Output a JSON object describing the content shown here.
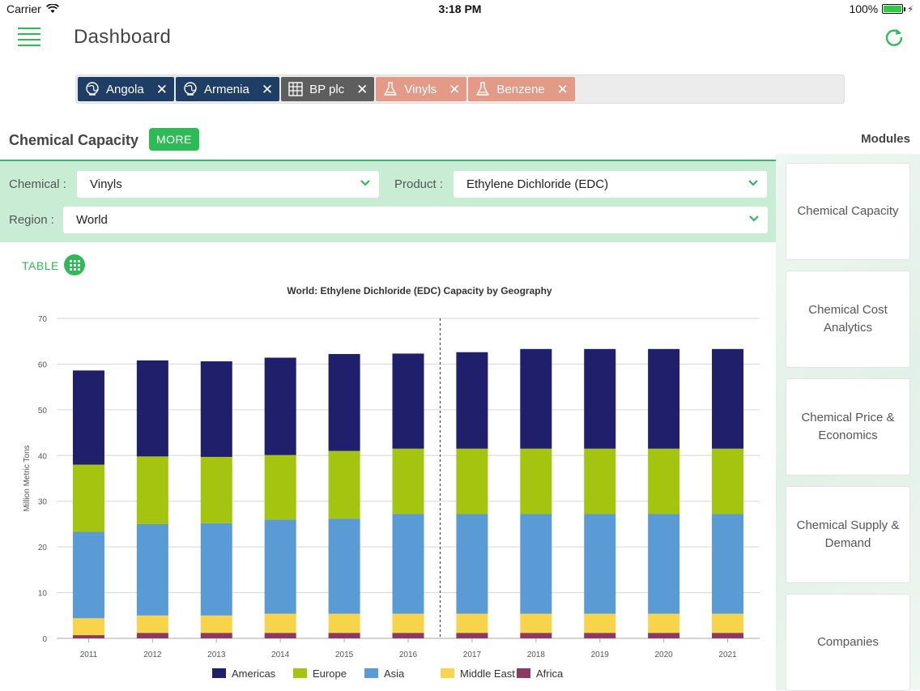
{
  "status": {
    "carrier": "Carrier",
    "time": "3:18 PM",
    "battery": "100%"
  },
  "header": {
    "title": "Dashboard"
  },
  "chips": [
    {
      "label": "Angola",
      "kind": "geo",
      "icon": "globe-icon"
    },
    {
      "label": "Armenia",
      "kind": "geo",
      "icon": "globe-icon"
    },
    {
      "label": "BP plc",
      "kind": "company",
      "icon": "building-icon"
    },
    {
      "label": "Vinyls",
      "kind": "chem",
      "icon": "flask-icon"
    },
    {
      "label": "Benzene",
      "kind": "chem",
      "icon": "flask-icon"
    }
  ],
  "section": {
    "title": "Chemical Capacity",
    "more_label": "MORE",
    "modules_title": "Modules"
  },
  "filters": {
    "chemical_label": "Chemical :",
    "chemical_value": "Vinyls",
    "product_label": "Product :",
    "product_value": "Ethylene Dichloride (EDC)",
    "region_label": "Region :",
    "region_value": "World"
  },
  "table_label": "TABLE",
  "modules": [
    "Chemical Capacity",
    "Chemical Cost Analytics",
    "Chemical Price & Economics",
    "Chemical Supply & Demand",
    "Companies"
  ],
  "colors": {
    "accent": "#2dba57",
    "geo_chip": "#1f3e66",
    "company_chip": "#5e5e5e",
    "chem_chip": "#e39a87"
  },
  "chart_data": {
    "type": "bar",
    "stacked": true,
    "title": "World: Ethylene Dichloride (EDC) Capacity by Geography",
    "ylabel": "Million Metric Tons",
    "xlabel": "",
    "ylim": [
      0,
      70
    ],
    "yticks": [
      0,
      10,
      20,
      30,
      40,
      50,
      60,
      70
    ],
    "grid": true,
    "legend": "bottom",
    "forecast_divider_after": "2016",
    "categories": [
      "2011",
      "2012",
      "2013",
      "2014",
      "2015",
      "2016",
      "2017",
      "2018",
      "2019",
      "2020",
      "2021"
    ],
    "series": [
      {
        "name": "Africa",
        "color": "#8b3a62",
        "values": [
          0.7,
          1.2,
          1.2,
          1.2,
          1.2,
          1.2,
          1.2,
          1.2,
          1.2,
          1.2,
          1.2
        ]
      },
      {
        "name": "Middle East",
        "color": "#f7d44a",
        "values": [
          3.7,
          3.8,
          3.8,
          4.2,
          4.2,
          4.2,
          4.2,
          4.2,
          4.2,
          4.2,
          4.2
        ]
      },
      {
        "name": "Asia",
        "color": "#5b9bd5",
        "values": [
          18.9,
          20.0,
          20.2,
          20.6,
          20.8,
          21.8,
          21.8,
          21.8,
          21.8,
          21.8,
          21.8
        ]
      },
      {
        "name": "Europe",
        "color": "#a5c40f",
        "values": [
          14.7,
          14.8,
          14.5,
          14.1,
          14.8,
          14.3,
          14.3,
          14.3,
          14.3,
          14.3,
          14.3
        ]
      },
      {
        "name": "Americas",
        "color": "#1f1f6b",
        "values": [
          20.6,
          21.0,
          20.9,
          21.3,
          21.2,
          20.8,
          21.1,
          21.8,
          21.8,
          21.8,
          21.8
        ]
      }
    ],
    "legend_order": [
      "Americas",
      "Europe",
      "Asia",
      "Middle East",
      "Africa"
    ]
  }
}
